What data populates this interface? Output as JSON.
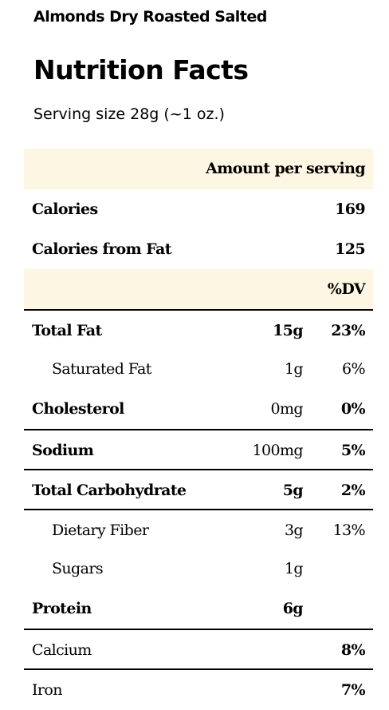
{
  "product_name": "Almonds Dry Roasted Salted",
  "title": "Nutrition Facts",
  "serving_size": "Serving size 28g (~1 oz.)",
  "header": {
    "amount_per_serving": "Amount per serving",
    "dv_label": "%DV"
  },
  "calories": {
    "label": "Calories",
    "value": "169"
  },
  "calories_from_fat": {
    "label": "Calories from Fat",
    "value": "125"
  },
  "nutrients": [
    {
      "label": "Total Fat",
      "amount": "15g",
      "dv": "23%"
    },
    {
      "label": "Saturated Fat",
      "amount": "1g",
      "dv": "6%"
    },
    {
      "label": "Cholesterol",
      "amount": "0mg",
      "dv": "0%"
    },
    {
      "label": "Sodium",
      "amount": "100mg",
      "dv": "5%"
    },
    {
      "label": "Total Carbohydrate",
      "amount": "5g",
      "dv": "2%"
    },
    {
      "label": "Dietary Fiber",
      "amount": "3g",
      "dv": "13%"
    },
    {
      "label": "Sugars",
      "amount": "1g",
      "dv": ""
    },
    {
      "label": "Protein",
      "amount": "6g",
      "dv": ""
    },
    {
      "label": "Calcium",
      "amount": "",
      "dv": "8%"
    },
    {
      "label": "Iron",
      "amount": "",
      "dv": "7%"
    }
  ],
  "colors": {
    "header_shade": "#fdf6e3",
    "rule": "#000000"
  }
}
